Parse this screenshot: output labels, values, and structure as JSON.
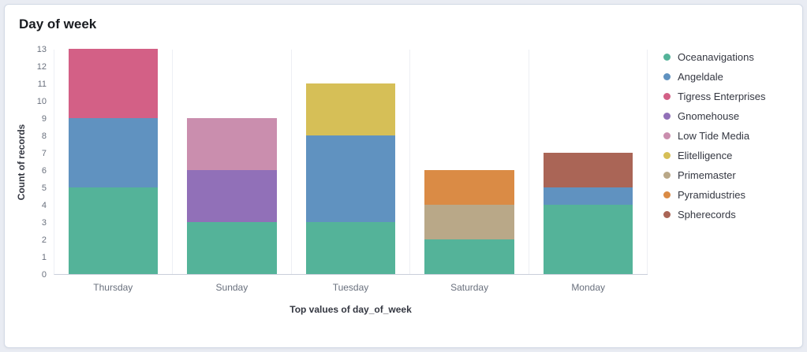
{
  "panel": {
    "title": "Day of week"
  },
  "chart_data": {
    "type": "bar",
    "stacked": true,
    "title": "Day of week",
    "xlabel": "Top values of day_of_week",
    "ylabel": "Count of records",
    "ylim": [
      0,
      13
    ],
    "y_tick_step": 1,
    "grid": "faint-vertical",
    "legend_position": "right",
    "categories": [
      "Thursday",
      "Sunday",
      "Tuesday",
      "Saturday",
      "Monday"
    ],
    "series": [
      {
        "name": "Oceanavigations",
        "color": "#54B399",
        "values": [
          5,
          3,
          3,
          2,
          4
        ]
      },
      {
        "name": "Angeldale",
        "color": "#6092C0",
        "values": [
          4,
          0,
          5,
          0,
          1
        ]
      },
      {
        "name": "Tigress Enterprises",
        "color": "#D36086",
        "values": [
          4,
          0,
          0,
          0,
          0
        ]
      },
      {
        "name": "Gnomehouse",
        "color": "#9170B8",
        "values": [
          0,
          3,
          0,
          0,
          0
        ]
      },
      {
        "name": "Low Tide Media",
        "color": "#CA8EAE",
        "values": [
          0,
          3,
          0,
          0,
          0
        ]
      },
      {
        "name": "Elitelligence",
        "color": "#D6BF57",
        "values": [
          0,
          0,
          3,
          0,
          0
        ]
      },
      {
        "name": "Primemaster",
        "color": "#B9A888",
        "values": [
          0,
          0,
          0,
          2,
          0
        ]
      },
      {
        "name": "Pyramidustries",
        "color": "#DA8B45",
        "values": [
          0,
          0,
          0,
          2,
          0
        ]
      },
      {
        "name": "Spherecords",
        "color": "#AA6556",
        "values": [
          0,
          0,
          0,
          0,
          2
        ]
      }
    ],
    "totals": [
      13,
      9,
      11,
      6,
      7
    ]
  }
}
